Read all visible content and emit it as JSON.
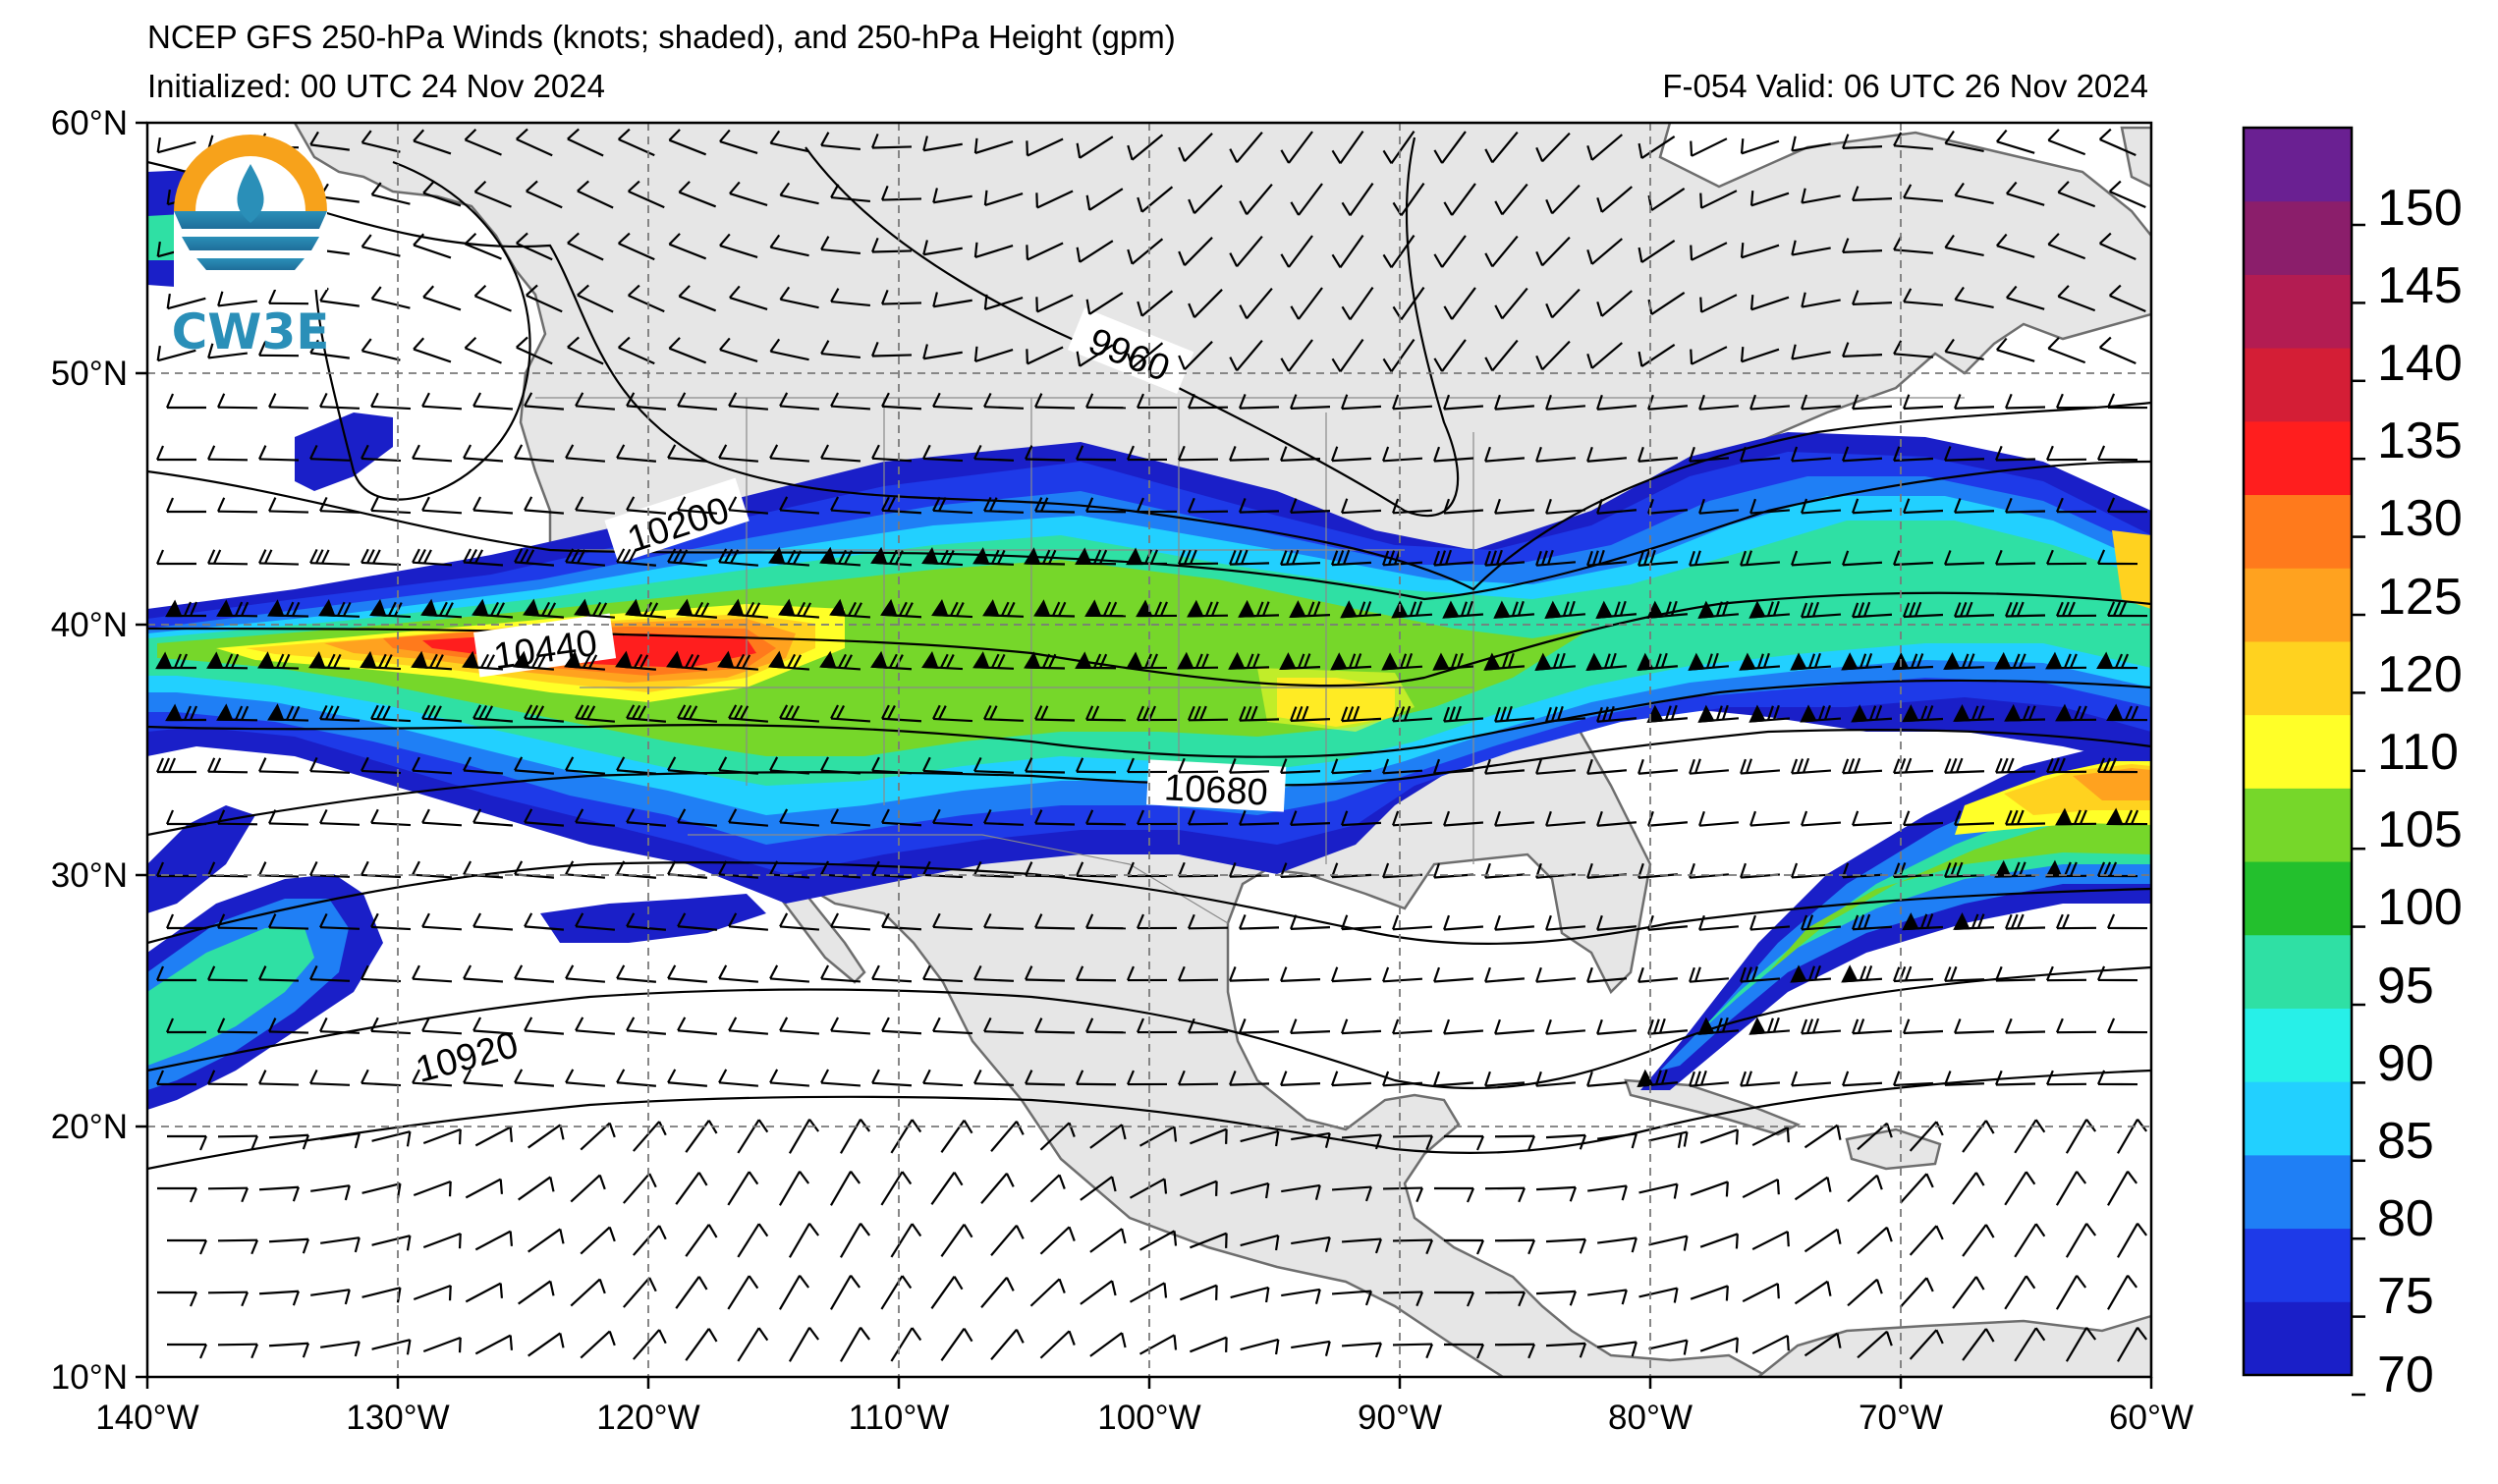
{
  "header": {
    "title": "NCEP GFS 250-hPa Winds (knots; shaded), and 250-hPa Height (gpm)",
    "initialized": "Initialized: 00 UTC 24 Nov 2024",
    "valid": "F-054  Valid: 06 UTC 26 Nov 2024"
  },
  "logo": {
    "text": "CW3E"
  },
  "map": {
    "projection": "PlateCarree",
    "lon_range": [
      -140,
      -60
    ],
    "lat_range": [
      10,
      60
    ],
    "lon_ticks": [
      "140°W",
      "130°W",
      "120°W",
      "110°W",
      "100°W",
      "90°W",
      "80°W",
      "70°W",
      "60°W"
    ],
    "lat_ticks": [
      "60°N",
      "50°N",
      "40°N",
      "30°N",
      "20°N",
      "10°N"
    ],
    "gridlines": true,
    "land_color": "#e6e6e6",
    "ocean_color": "#ffffff",
    "coast_color": "#6e6e6e"
  },
  "height_contours": {
    "labels": [
      "9960",
      "10200",
      "10440",
      "10680",
      "10920"
    ]
  },
  "colorbar": {
    "ticks": [
      "150",
      "145",
      "140",
      "135",
      "130",
      "125",
      "120",
      "110",
      "105",
      "100",
      "95",
      "90",
      "85",
      "80",
      "75",
      "70"
    ],
    "colors": [
      "#1a1fc8",
      "#1e3ae8",
      "#1f7ff5",
      "#22d0ff",
      "#27f0e8",
      "#2fe0a4",
      "#23c02d",
      "#76d72a",
      "#ffff28",
      "#ffd21f",
      "#ffa21f",
      "#ff7a1c",
      "#ff1e1e",
      "#d41e36",
      "#b31c52",
      "#8b1e6b",
      "#6a2092"
    ]
  }
}
